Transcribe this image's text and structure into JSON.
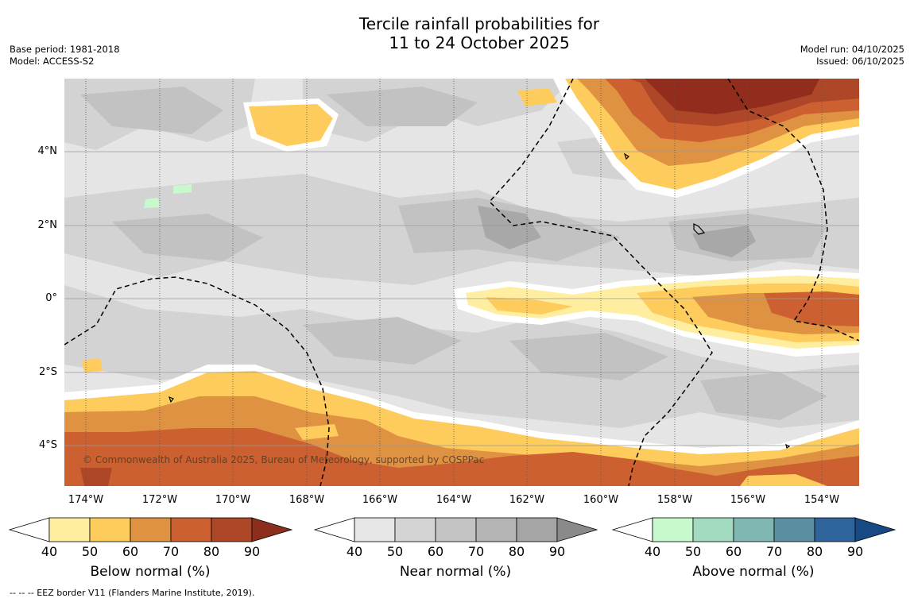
{
  "title": {
    "line1": "Tercile rainfall probabilities for",
    "line2": "11 to 24 October 2025"
  },
  "meta_left": {
    "base_period": "Base period: 1981-2018",
    "model": "Model: ACCESS-S2"
  },
  "meta_right": {
    "model_run": "Model run: 04/10/2025",
    "issued": "Issued: 06/10/2025"
  },
  "map": {
    "lat_labels": [
      "4°N",
      "2°N",
      "0°",
      "2°S",
      "4°S"
    ],
    "lon_labels": [
      "174°W",
      "172°W",
      "170°W",
      "168°W",
      "166°W",
      "164°W",
      "162°W",
      "160°W",
      "158°W",
      "156°W",
      "154°W"
    ],
    "copyright": "© Commonwealth of Australia 2025, Bureau of Meteorology, supported by COSPPac"
  },
  "legends": {
    "below": {
      "label": "Below normal (%)",
      "ticks": [
        "40",
        "50",
        "60",
        "70",
        "80",
        "90"
      ],
      "colors": [
        "#ffeda0",
        "#fecc5c",
        "#e09243",
        "#cc6030",
        "#ae4628",
        "#8b2e1e"
      ]
    },
    "near": {
      "label": "Near normal (%)",
      "ticks": [
        "40",
        "50",
        "60",
        "70",
        "80",
        "90"
      ],
      "colors": [
        "#e6e6e6",
        "#d4d4d4",
        "#c4c4c4",
        "#b4b4b4",
        "#a5a5a5",
        "#8a8a8a"
      ]
    },
    "above": {
      "label": "Above normal (%)",
      "ticks": [
        "40",
        "50",
        "60",
        "70",
        "80",
        "90"
      ],
      "colors": [
        "#c7f9cc",
        "#a3dbc1",
        "#80b7b3",
        "#5b8ea1",
        "#2f639b",
        "#174a84"
      ]
    }
  },
  "footer": "--  --  -- EEZ border V11 (Flanders Marine Institute, 2019)."
}
